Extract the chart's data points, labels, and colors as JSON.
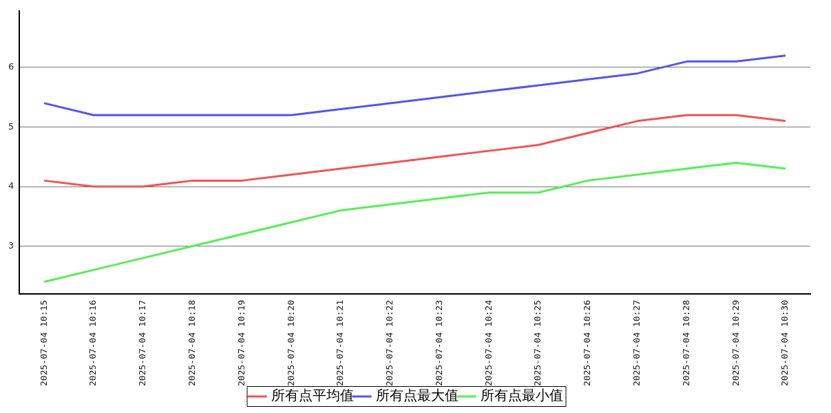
{
  "chart_data": {
    "type": "line",
    "categories": [
      "2025-07-04 10:15",
      "2025-07-04 10:16",
      "2025-07-04 10:17",
      "2025-07-04 10:18",
      "2025-07-04 10:19",
      "2025-07-04 10:20",
      "2025-07-04 10:21",
      "2025-07-04 10:22",
      "2025-07-04 10:23",
      "2025-07-04 10:24",
      "2025-07-04 10:25",
      "2025-07-04 10:26",
      "2025-07-04 10:27",
      "2025-07-04 10:28",
      "2025-07-04 10:29",
      "2025-07-04 10:30"
    ],
    "series": [
      {
        "name": "所有点平均值",
        "color": "#f05454",
        "values": [
          4.1,
          4.0,
          4.0,
          4.1,
          4.1,
          4.2,
          4.3,
          4.4,
          4.5,
          4.6,
          4.7,
          4.9,
          5.1,
          5.2,
          5.2,
          5.1
        ]
      },
      {
        "name": "所有点最大值",
        "color": "#5454f0",
        "values": [
          5.4,
          5.2,
          5.2,
          5.2,
          5.2,
          5.2,
          5.3,
          5.4,
          5.5,
          5.6,
          5.7,
          5.8,
          5.9,
          6.1,
          6.1,
          6.2
        ]
      },
      {
        "name": "所有点最小值",
        "color": "#54f054",
        "values": [
          2.4,
          2.6,
          2.8,
          3.0,
          3.2,
          3.4,
          3.6,
          3.7,
          3.8,
          3.9,
          3.9,
          4.1,
          4.2,
          4.3,
          4.4,
          4.3
        ]
      }
    ],
    "ylim": [
      2.2,
      6.95
    ],
    "yticks": [
      3,
      4,
      5,
      6
    ],
    "grid": "y",
    "legend": "bottom",
    "marker": "none",
    "line_style": "solid"
  }
}
